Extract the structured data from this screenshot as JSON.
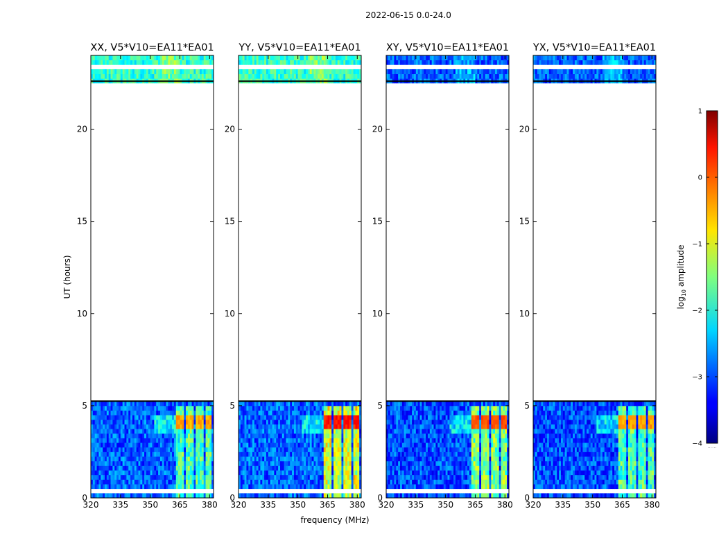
{
  "chart_data": {
    "type": "heatmap",
    "suptitle": "2022-06-15 0.0-24.0",
    "xlabel": "frequency (MHz)",
    "ylabel": "UT (hours)",
    "xlim": [
      320,
      382
    ],
    "ylim": [
      0,
      24
    ],
    "xticks": [
      320,
      335,
      350,
      365,
      380
    ],
    "yticks": [
      0,
      5,
      10,
      15,
      20
    ],
    "colorbar": {
      "label": "log10 amplitude",
      "label_base": "log",
      "label_sub": "10",
      "label_rest": " amplitude",
      "range": [
        -4,
        1
      ],
      "ticks": [
        1,
        0,
        -1,
        -2,
        -3,
        -4
      ],
      "tick_labels": [
        "1",
        "0",
        "−1",
        "−2",
        "−3",
        "−4"
      ],
      "below_label": "......"
    },
    "panels": [
      {
        "name": "xx",
        "title": "XX, V5*V10=EA11*EA01",
        "base": -2.9,
        "rfi_strength": 1.2,
        "rfi_peak": -0.45,
        "top_level": -1.9
      },
      {
        "name": "yy",
        "title": "YY, V5*V10=EA11*EA01",
        "base": -2.9,
        "rfi_strength": 1.9,
        "rfi_peak": 0.25,
        "top_level": -1.9
      },
      {
        "name": "xy",
        "title": "XY, V5*V10=EA11*EA01",
        "base": -3.0,
        "rfi_strength": 1.6,
        "rfi_peak": 0.0,
        "top_level": -2.9
      },
      {
        "name": "yx",
        "title": "YX, V5*V10=EA11*EA01",
        "base": -3.0,
        "rfi_strength": 1.3,
        "rfi_peak": -0.4,
        "top_level": -2.9
      }
    ],
    "data_hour_ranges": [
      [
        0.0,
        5.25
      ],
      [
        22.6,
        24.0
      ]
    ],
    "flagged_hour_ranges": [
      [
        0.28,
        0.42
      ],
      [
        1.45,
        1.52
      ],
      [
        2.38,
        2.58
      ],
      [
        2.78,
        2.85
      ],
      [
        4.42,
        4.55
      ],
      [
        5.25,
        22.6
      ],
      [
        23.05,
        23.1
      ],
      [
        23.35,
        23.4
      ]
    ],
    "rfi_freq_ranges_mhz": [
      [
        363.5,
        367.5
      ],
      [
        368.2,
        372.2
      ],
      [
        373.0,
        377.0
      ],
      [
        377.8,
        381.0
      ]
    ],
    "rfi_hour_range": [
      0.0,
      5.1
    ],
    "rfi_peak_hours": [
      3.8,
      4.4
    ]
  }
}
